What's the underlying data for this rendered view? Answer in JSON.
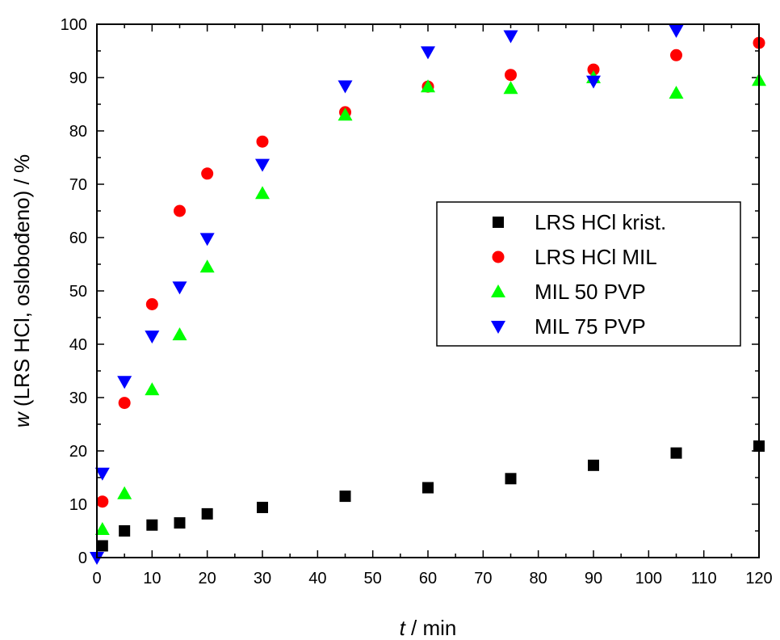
{
  "chart_data": {
    "type": "scatter",
    "xlabel_var": "t",
    "xlabel_unit": " / min",
    "ylabel_var": "w",
    "ylabel_rest": " (LRS HCl, oslobođeno) / %",
    "xlim": [
      0,
      120
    ],
    "ylim": [
      0,
      100
    ],
    "xticks": [
      0,
      10,
      20,
      30,
      40,
      50,
      60,
      70,
      80,
      90,
      100,
      110,
      120
    ],
    "yticks": [
      0,
      10,
      20,
      30,
      40,
      50,
      60,
      70,
      80,
      90,
      100
    ],
    "grid": false,
    "legend_position": "right-middle",
    "series": [
      {
        "name": "LRS HCl krist.",
        "marker": "square",
        "color": "#000000",
        "x": [
          1,
          5,
          10,
          15,
          20,
          30,
          45,
          60,
          75,
          90,
          105,
          120
        ],
        "y": [
          2.2,
          5.0,
          6.1,
          6.5,
          8.2,
          9.4,
          11.5,
          13.1,
          14.8,
          17.3,
          19.6,
          20.9
        ]
      },
      {
        "name": "LRS HCl MIL",
        "marker": "circle",
        "color": "#ff0000",
        "x": [
          1,
          5,
          10,
          15,
          20,
          30,
          45,
          60,
          75,
          90,
          105,
          120
        ],
        "y": [
          10.5,
          29.0,
          47.5,
          65.0,
          72.0,
          78.0,
          83.5,
          88.3,
          90.5,
          91.5,
          94.2,
          96.5
        ]
      },
      {
        "name": "MIL 50 PVP",
        "marker": "triangle-up",
        "color": "#00ff00",
        "x": [
          1,
          5,
          10,
          15,
          20,
          30,
          45,
          60,
          75,
          90,
          105,
          120
        ],
        "y": [
          5.3,
          12.0,
          31.5,
          41.8,
          54.5,
          68.3,
          83.0,
          88.3,
          88.0,
          90.0,
          87.1,
          89.5
        ]
      },
      {
        "name": "MIL 75 PVP",
        "marker": "triangle-down",
        "color": "#0000ff",
        "x": [
          0,
          1,
          5,
          10,
          15,
          20,
          30,
          45,
          60,
          75,
          90,
          105
        ],
        "y": [
          0,
          15.8,
          33.0,
          41.5,
          50.7,
          59.8,
          73.7,
          88.4,
          94.8,
          97.8,
          89.3,
          98.8
        ]
      }
    ]
  }
}
